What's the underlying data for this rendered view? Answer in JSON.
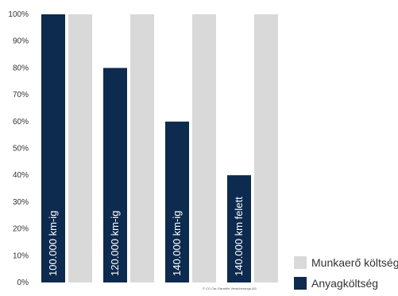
{
  "chart_data": {
    "type": "bar",
    "categories": [
      "100.000 km-ig",
      "120.000 km-ig",
      "140.000 km-ig",
      "140.000 km felett"
    ],
    "series": [
      {
        "name": "Anyagköltség",
        "color": "#0d2a4f",
        "values": [
          100,
          80,
          60,
          40
        ]
      },
      {
        "name": "Munkaerő költség",
        "color": "#d9d9d9",
        "values": [
          100,
          100,
          100,
          100
        ]
      }
    ],
    "yticks": [
      "0%",
      "10%",
      "20%",
      "30%",
      "40%",
      "50%",
      "60%",
      "70%",
      "80%",
      "90%",
      "100%"
    ],
    "ylim": [
      0,
      100
    ],
    "grid": false,
    "legend_position": "bottom-right"
  },
  "legend": [
    {
      "label": "Munkaerő költség",
      "color": "#d9d9d9"
    },
    {
      "label": "Anyagköltség",
      "color": "#0d2a4f"
    }
  ],
  "copyright": "© CG Car-Garantie Versicherungs-AG"
}
